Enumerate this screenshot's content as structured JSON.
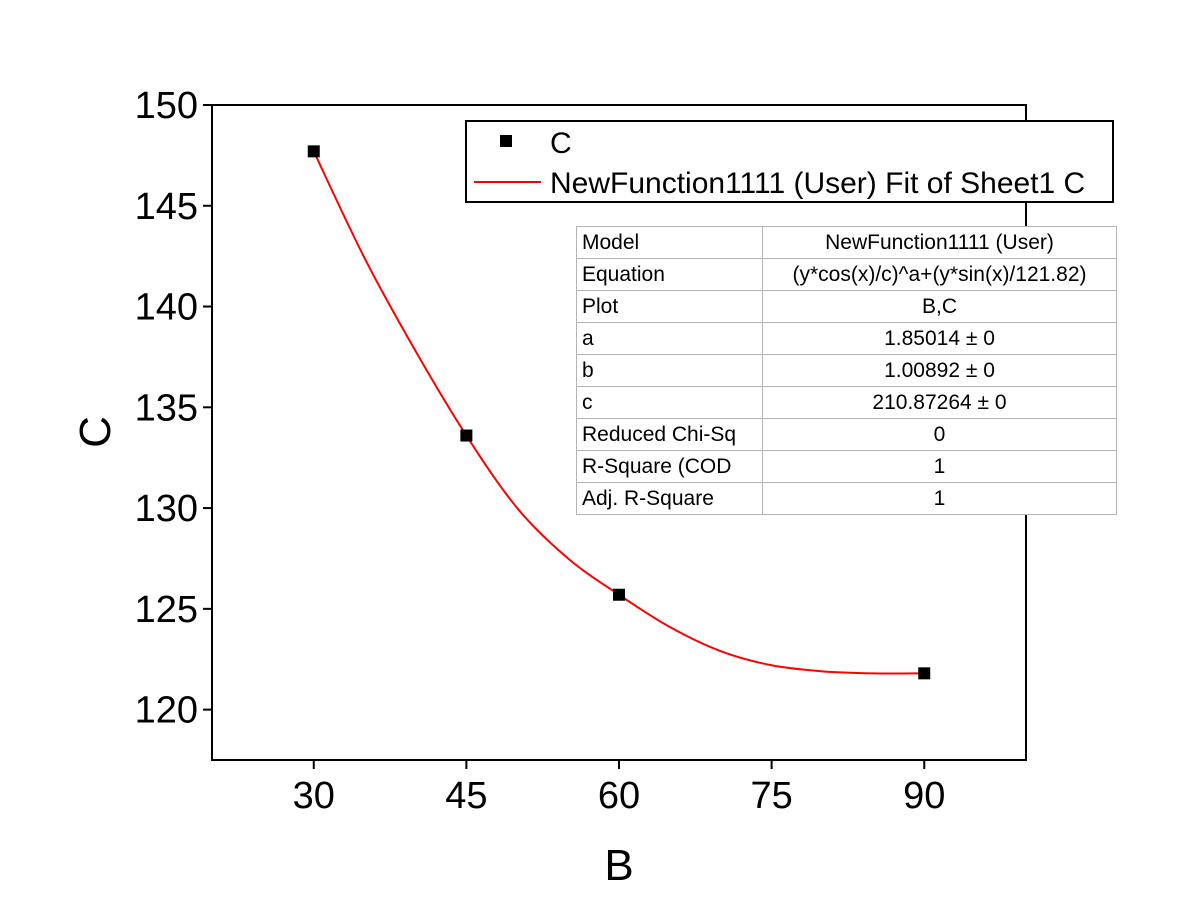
{
  "chart_data": {
    "type": "scatter",
    "x": [
      30,
      45,
      60,
      90
    ],
    "series": [
      {
        "name": "C",
        "kind": "scatter",
        "marker": "square",
        "color": "#000000",
        "x": [
          30,
          45,
          60,
          90
        ],
        "y": [
          147.7,
          133.6,
          125.7,
          121.8
        ]
      },
      {
        "name": "NewFunction1111 (User) Fit of Sheet1 C",
        "kind": "line",
        "color": "#ff0000",
        "x": [
          30,
          35,
          40,
          45,
          50,
          55,
          60,
          65,
          70,
          75,
          80,
          85,
          90
        ],
        "y": [
          147.7,
          142.4,
          137.8,
          133.6,
          130.0,
          127.5,
          125.7,
          124.1,
          122.9,
          122.2,
          121.9,
          121.8,
          121.8
        ]
      }
    ],
    "xlabel": "B",
    "ylabel": "C",
    "xlim": [
      20,
      100
    ],
    "ylim": [
      117.5,
      150
    ],
    "xticks": [
      30,
      45,
      60,
      75,
      90
    ],
    "yticks": [
      120,
      125,
      130,
      135,
      140,
      145,
      150
    ],
    "grid": false,
    "legend_position": "top-right"
  },
  "fit_table": [
    {
      "name": "Model",
      "value": "NewFunction1111 (User)"
    },
    {
      "name": "Equation",
      "value": "(y*cos(x)/c)^a+(y*sin(x)/121.82)"
    },
    {
      "name": "Plot",
      "value": "B,C"
    },
    {
      "name": "a",
      "value": "1.85014 ± 0"
    },
    {
      "name": "b",
      "value": "1.00892 ± 0"
    },
    {
      "name": "c",
      "value": "210.87264 ± 0"
    },
    {
      "name": "Reduced Chi-Sq",
      "value": "0"
    },
    {
      "name": "R-Square (COD",
      "value": "1"
    },
    {
      "name": "Adj. R-Square",
      "value": "1"
    }
  ]
}
